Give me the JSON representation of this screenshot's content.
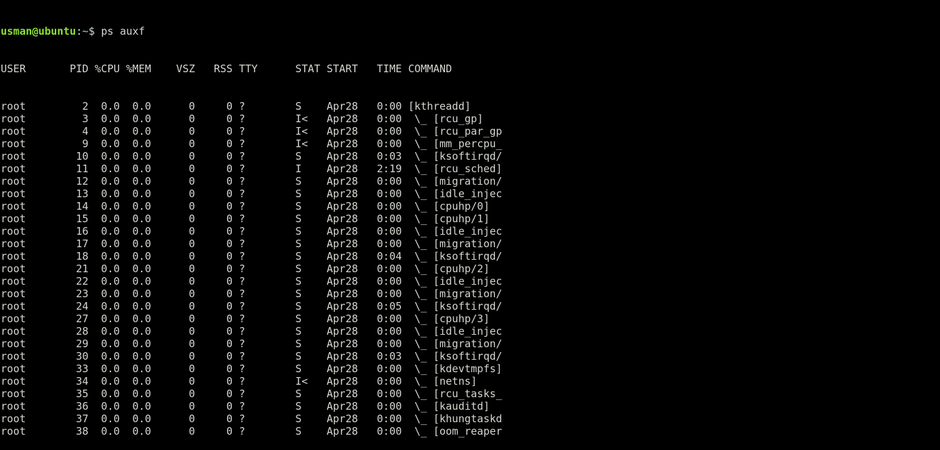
{
  "prompt": {
    "user_host": "usman@ubuntu",
    "sep": ":",
    "path": "~",
    "symbol": "$ ",
    "command": "ps auxf"
  },
  "colors": {
    "background": "#000000",
    "text": "#d3d7cf",
    "prompt": "#8ae234"
  },
  "headers": [
    "USER",
    "PID",
    "%CPU",
    "%MEM",
    "VSZ",
    "RSS",
    "TTY",
    "STAT",
    "START",
    "TIME",
    "COMMAND"
  ],
  "rows": [
    [
      "root",
      "2",
      "0.0",
      "0.0",
      "0",
      "0",
      "?",
      "S",
      "Apr28",
      "0:00",
      "[kthreadd]"
    ],
    [
      "root",
      "3",
      "0.0",
      "0.0",
      "0",
      "0",
      "?",
      "I<",
      "Apr28",
      "0:00",
      " \\_ [rcu_gp]"
    ],
    [
      "root",
      "4",
      "0.0",
      "0.0",
      "0",
      "0",
      "?",
      "I<",
      "Apr28",
      "0:00",
      " \\_ [rcu_par_gp"
    ],
    [
      "root",
      "9",
      "0.0",
      "0.0",
      "0",
      "0",
      "?",
      "I<",
      "Apr28",
      "0:00",
      " \\_ [mm_percpu_"
    ],
    [
      "root",
      "10",
      "0.0",
      "0.0",
      "0",
      "0",
      "?",
      "S",
      "Apr28",
      "0:03",
      " \\_ [ksoftirqd/"
    ],
    [
      "root",
      "11",
      "0.0",
      "0.0",
      "0",
      "0",
      "?",
      "I",
      "Apr28",
      "2:19",
      " \\_ [rcu_sched]"
    ],
    [
      "root",
      "12",
      "0.0",
      "0.0",
      "0",
      "0",
      "?",
      "S",
      "Apr28",
      "0:00",
      " \\_ [migration/"
    ],
    [
      "root",
      "13",
      "0.0",
      "0.0",
      "0",
      "0",
      "?",
      "S",
      "Apr28",
      "0:00",
      " \\_ [idle_injec"
    ],
    [
      "root",
      "14",
      "0.0",
      "0.0",
      "0",
      "0",
      "?",
      "S",
      "Apr28",
      "0:00",
      " \\_ [cpuhp/0]"
    ],
    [
      "root",
      "15",
      "0.0",
      "0.0",
      "0",
      "0",
      "?",
      "S",
      "Apr28",
      "0:00",
      " \\_ [cpuhp/1]"
    ],
    [
      "root",
      "16",
      "0.0",
      "0.0",
      "0",
      "0",
      "?",
      "S",
      "Apr28",
      "0:00",
      " \\_ [idle_injec"
    ],
    [
      "root",
      "17",
      "0.0",
      "0.0",
      "0",
      "0",
      "?",
      "S",
      "Apr28",
      "0:00",
      " \\_ [migration/"
    ],
    [
      "root",
      "18",
      "0.0",
      "0.0",
      "0",
      "0",
      "?",
      "S",
      "Apr28",
      "0:04",
      " \\_ [ksoftirqd/"
    ],
    [
      "root",
      "21",
      "0.0",
      "0.0",
      "0",
      "0",
      "?",
      "S",
      "Apr28",
      "0:00",
      " \\_ [cpuhp/2]"
    ],
    [
      "root",
      "22",
      "0.0",
      "0.0",
      "0",
      "0",
      "?",
      "S",
      "Apr28",
      "0:00",
      " \\_ [idle_injec"
    ],
    [
      "root",
      "23",
      "0.0",
      "0.0",
      "0",
      "0",
      "?",
      "S",
      "Apr28",
      "0:00",
      " \\_ [migration/"
    ],
    [
      "root",
      "24",
      "0.0",
      "0.0",
      "0",
      "0",
      "?",
      "S",
      "Apr28",
      "0:05",
      " \\_ [ksoftirqd/"
    ],
    [
      "root",
      "27",
      "0.0",
      "0.0",
      "0",
      "0",
      "?",
      "S",
      "Apr28",
      "0:00",
      " \\_ [cpuhp/3]"
    ],
    [
      "root",
      "28",
      "0.0",
      "0.0",
      "0",
      "0",
      "?",
      "S",
      "Apr28",
      "0:00",
      " \\_ [idle_injec"
    ],
    [
      "root",
      "29",
      "0.0",
      "0.0",
      "0",
      "0",
      "?",
      "S",
      "Apr28",
      "0:00",
      " \\_ [migration/"
    ],
    [
      "root",
      "30",
      "0.0",
      "0.0",
      "0",
      "0",
      "?",
      "S",
      "Apr28",
      "0:03",
      " \\_ [ksoftirqd/"
    ],
    [
      "root",
      "33",
      "0.0",
      "0.0",
      "0",
      "0",
      "?",
      "S",
      "Apr28",
      "0:00",
      " \\_ [kdevtmpfs]"
    ],
    [
      "root",
      "34",
      "0.0",
      "0.0",
      "0",
      "0",
      "?",
      "I<",
      "Apr28",
      "0:00",
      " \\_ [netns]"
    ],
    [
      "root",
      "35",
      "0.0",
      "0.0",
      "0",
      "0",
      "?",
      "S",
      "Apr28",
      "0:00",
      " \\_ [rcu_tasks_"
    ],
    [
      "root",
      "36",
      "0.0",
      "0.0",
      "0",
      "0",
      "?",
      "S",
      "Apr28",
      "0:00",
      " \\_ [kauditd]"
    ],
    [
      "root",
      "37",
      "0.0",
      "0.0",
      "0",
      "0",
      "?",
      "S",
      "Apr28",
      "0:00",
      " \\_ [khungtaskd"
    ],
    [
      "root",
      "38",
      "0.0",
      "0.0",
      "0",
      "0",
      "?",
      "S",
      "Apr28",
      "0:00",
      " \\_ [oom_reaper"
    ]
  ]
}
